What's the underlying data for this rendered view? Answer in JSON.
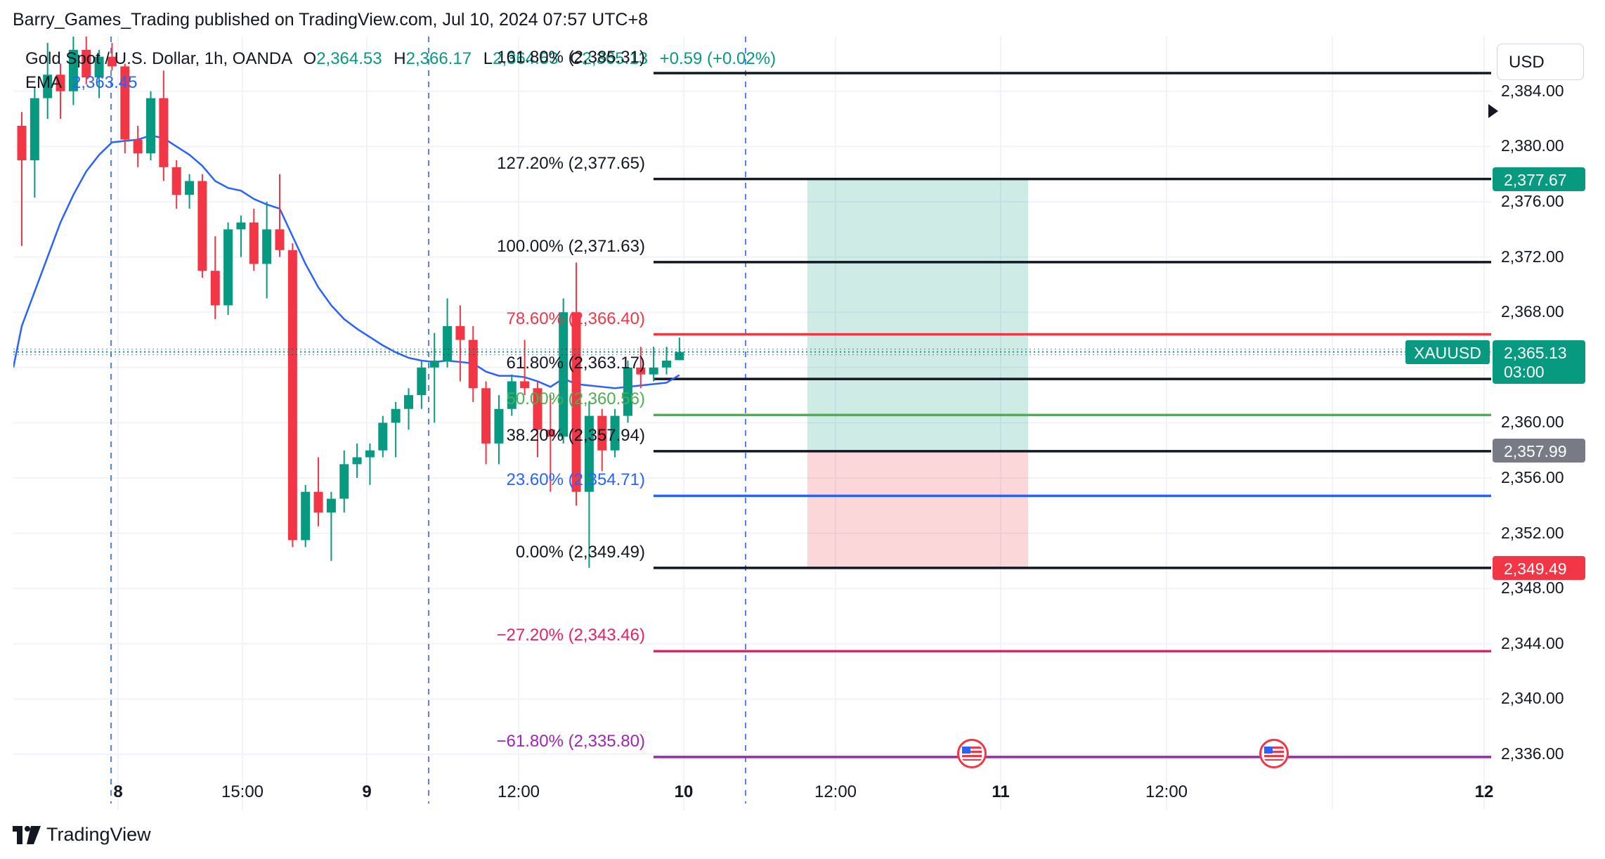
{
  "publisher": {
    "text": "Barry_Games_Trading published on TradingView.com, Jul 10, 2024 07:57 UTC+8"
  },
  "header": {
    "symbol": "Gold Spot / U.S. Dollar, 1h, OANDA",
    "o_label": "O",
    "o_value": "2,364.53",
    "h_label": "H",
    "h_value": "2,366.17",
    "l_label": "L",
    "l_value": "2,364.53",
    "c_label": "C",
    "c_value": "2,365.13",
    "change": "+0.59 (+0.02%)"
  },
  "ema": {
    "label": "EMA",
    "value": "2,363.45"
  },
  "currency_button": "USD",
  "price_axis": [
    "2,384.00",
    "2,380.00",
    "2,376.00",
    "2,372.00",
    "2,368.00",
    "2,360.00",
    "2,356.00",
    "2,352.00",
    "2,348.00",
    "2,344.00",
    "2,340.00",
    "2,336.00"
  ],
  "badges": {
    "target": "2,377.67",
    "current_price": "2,365.13",
    "countdown": "03:00",
    "entry": "2,357.99",
    "stop": "2,349.49",
    "symbol": "XAUUSD"
  },
  "time_axis": [
    "8",
    "15:00",
    "9",
    "12:00",
    "10",
    "12:00",
    "11",
    "12:00",
    "12"
  ],
  "fib_levels": [
    {
      "label": "161.80% (2,385.31)",
      "price": 2385.31,
      "color": "#131722"
    },
    {
      "label": "127.20% (2,377.65)",
      "price": 2377.65,
      "color": "#131722"
    },
    {
      "label": "100.00% (2,371.63)",
      "price": 2371.63,
      "color": "#131722"
    },
    {
      "label": "78.60% (2,366.40)",
      "price": 2366.4,
      "color": "#f23645"
    },
    {
      "label": "61.80% (2,363.17)",
      "price": 2363.17,
      "color": "#131722"
    },
    {
      "label": "50.00% (2,360.56)",
      "price": 2360.56,
      "color": "#4caf50"
    },
    {
      "label": "38.20% (2,357.94)",
      "price": 2357.94,
      "color": "#131722"
    },
    {
      "label": "23.60% (2,354.71)",
      "price": 2354.71,
      "color": "#2962ff"
    },
    {
      "label": "0.00% (2,349.49)",
      "price": 2349.49,
      "color": "#131722"
    },
    {
      "label": "−27.20% (2,343.46)",
      "price": 2343.46,
      "color": "#e91e63"
    },
    {
      "label": "−61.80% (2,335.80)",
      "price": 2335.8,
      "color": "#9c27b0"
    }
  ],
  "position": {
    "entry": 2357.99,
    "target": 2377.67,
    "stop": 2349.49
  },
  "footer": {
    "brand": "TradingView"
  },
  "chart_data": {
    "type": "candlestick",
    "symbol": "XAUUSD",
    "timeframe": "1h",
    "ylim": [
      2333.5,
      2388
    ],
    "current_price": 2365.13,
    "candles": [
      {
        "o": 2381.5,
        "h": 2382.5,
        "l": 2372.8,
        "c": 2379.0
      },
      {
        "o": 2379.0,
        "h": 2384.3,
        "l": 2376.3,
        "c": 2383.5
      },
      {
        "o": 2383.5,
        "h": 2387.5,
        "l": 2382.0,
        "c": 2385.2
      },
      {
        "o": 2385.2,
        "h": 2386.0,
        "l": 2382.0,
        "c": 2384.0
      },
      {
        "o": 2384.0,
        "h": 2388.0,
        "l": 2383.0,
        "c": 2387.0
      },
      {
        "o": 2387.0,
        "h": 2388.0,
        "l": 2384.5,
        "c": 2385.0
      },
      {
        "o": 2385.0,
        "h": 2387.0,
        "l": 2383.5,
        "c": 2386.5
      },
      {
        "o": 2386.5,
        "h": 2387.5,
        "l": 2385.5,
        "c": 2385.8
      },
      {
        "o": 2385.8,
        "h": 2386.0,
        "l": 2379.5,
        "c": 2380.5
      },
      {
        "o": 2380.5,
        "h": 2381.5,
        "l": 2378.5,
        "c": 2379.5
      },
      {
        "o": 2379.5,
        "h": 2384.0,
        "l": 2379.0,
        "c": 2383.5
      },
      {
        "o": 2383.5,
        "h": 2385.5,
        "l": 2377.5,
        "c": 2378.5
      },
      {
        "o": 2378.5,
        "h": 2379.0,
        "l": 2375.5,
        "c": 2376.5
      },
      {
        "o": 2376.5,
        "h": 2378.0,
        "l": 2375.5,
        "c": 2377.5
      },
      {
        "o": 2377.5,
        "h": 2378.0,
        "l": 2370.5,
        "c": 2371.0
      },
      {
        "o": 2371.0,
        "h": 2373.5,
        "l": 2367.5,
        "c": 2368.5
      },
      {
        "o": 2368.5,
        "h": 2374.5,
        "l": 2367.8,
        "c": 2374.0
      },
      {
        "o": 2374.0,
        "h": 2375.0,
        "l": 2372.0,
        "c": 2374.5
      },
      {
        "o": 2374.5,
        "h": 2375.5,
        "l": 2371.0,
        "c": 2371.5
      },
      {
        "o": 2371.5,
        "h": 2376.0,
        "l": 2369.0,
        "c": 2374.0
      },
      {
        "o": 2374.0,
        "h": 2378.0,
        "l": 2372.0,
        "c": 2372.5
      },
      {
        "o": 2372.5,
        "h": 2373.0,
        "l": 2351.0,
        "c": 2351.5
      },
      {
        "o": 2351.5,
        "h": 2355.5,
        "l": 2351.0,
        "c": 2355.0
      },
      {
        "o": 2355.0,
        "h": 2357.5,
        "l": 2352.5,
        "c": 2353.5
      },
      {
        "o": 2353.5,
        "h": 2355.0,
        "l": 2350.0,
        "c": 2354.5
      },
      {
        "o": 2354.5,
        "h": 2358.0,
        "l": 2353.5,
        "c": 2357.0
      },
      {
        "o": 2357.0,
        "h": 2358.5,
        "l": 2356.0,
        "c": 2357.5
      },
      {
        "o": 2357.5,
        "h": 2358.5,
        "l": 2355.5,
        "c": 2358.0
      },
      {
        "o": 2358.0,
        "h": 2360.5,
        "l": 2357.5,
        "c": 2360.0
      },
      {
        "o": 2360.0,
        "h": 2361.5,
        "l": 2357.5,
        "c": 2361.0
      },
      {
        "o": 2361.0,
        "h": 2362.5,
        "l": 2359.5,
        "c": 2362.0
      },
      {
        "o": 2362.0,
        "h": 2364.5,
        "l": 2361.0,
        "c": 2364.0
      },
      {
        "o": 2364.0,
        "h": 2366.5,
        "l": 2360.0,
        "c": 2364.5
      },
      {
        "o": 2364.5,
        "h": 2369.0,
        "l": 2364.0,
        "c": 2367.0
      },
      {
        "o": 2367.0,
        "h": 2368.5,
        "l": 2363.0,
        "c": 2366.0
      },
      {
        "o": 2366.0,
        "h": 2367.0,
        "l": 2361.5,
        "c": 2362.5
      },
      {
        "o": 2362.5,
        "h": 2363.0,
        "l": 2357.0,
        "c": 2358.5
      },
      {
        "o": 2358.5,
        "h": 2362.0,
        "l": 2357.0,
        "c": 2361.0
      },
      {
        "o": 2361.0,
        "h": 2363.5,
        "l": 2360.5,
        "c": 2363.0
      },
      {
        "o": 2363.0,
        "h": 2366.0,
        "l": 2362.0,
        "c": 2362.5
      },
      {
        "o": 2362.5,
        "h": 2363.0,
        "l": 2357.5,
        "c": 2359.5
      },
      {
        "o": 2359.5,
        "h": 2362.0,
        "l": 2355.0,
        "c": 2359.0
      },
      {
        "o": 2359.0,
        "h": 2369.0,
        "l": 2358.5,
        "c": 2368.0
      },
      {
        "o": 2368.0,
        "h": 2371.6,
        "l": 2354.0,
        "c": 2355.0
      },
      {
        "o": 2355.0,
        "h": 2361.5,
        "l": 2349.5,
        "c": 2360.5
      },
      {
        "o": 2360.5,
        "h": 2361.0,
        "l": 2356.5,
        "c": 2358.0
      },
      {
        "o": 2358.0,
        "h": 2361.0,
        "l": 2357.5,
        "c": 2360.5
      },
      {
        "o": 2360.5,
        "h": 2364.5,
        "l": 2360.0,
        "c": 2364.0
      },
      {
        "o": 2364.0,
        "h": 2365.5,
        "l": 2362.5,
        "c": 2363.5
      },
      {
        "o": 2363.5,
        "h": 2365.5,
        "l": 2363.0,
        "c": 2364.0
      },
      {
        "o": 2364.0,
        "h": 2365.5,
        "l": 2363.5,
        "c": 2364.5
      },
      {
        "o": 2364.53,
        "h": 2366.17,
        "l": 2364.53,
        "c": 2365.13
      }
    ],
    "ema": [
      2367.0,
      2369.5,
      2372.0,
      2374.5,
      2376.5,
      2378.2,
      2379.4,
      2380.3,
      2380.4,
      2380.5,
      2380.8,
      2380.6,
      2380.0,
      2379.4,
      2378.6,
      2377.5,
      2377.0,
      2376.8,
      2376.2,
      2375.8,
      2375.5,
      2373.5,
      2371.5,
      2369.8,
      2368.5,
      2367.5,
      2366.8,
      2366.2,
      2365.6,
      2365.1,
      2364.7,
      2364.5,
      2364.4,
      2364.5,
      2364.4,
      2364.3,
      2363.7,
      2363.4,
      2363.4,
      2363.3,
      2363.0,
      2362.6,
      2363.2,
      2362.8,
      2362.7,
      2362.6,
      2362.5,
      2362.6,
      2362.7,
      2362.8,
      2362.9,
      2363.45
    ]
  }
}
